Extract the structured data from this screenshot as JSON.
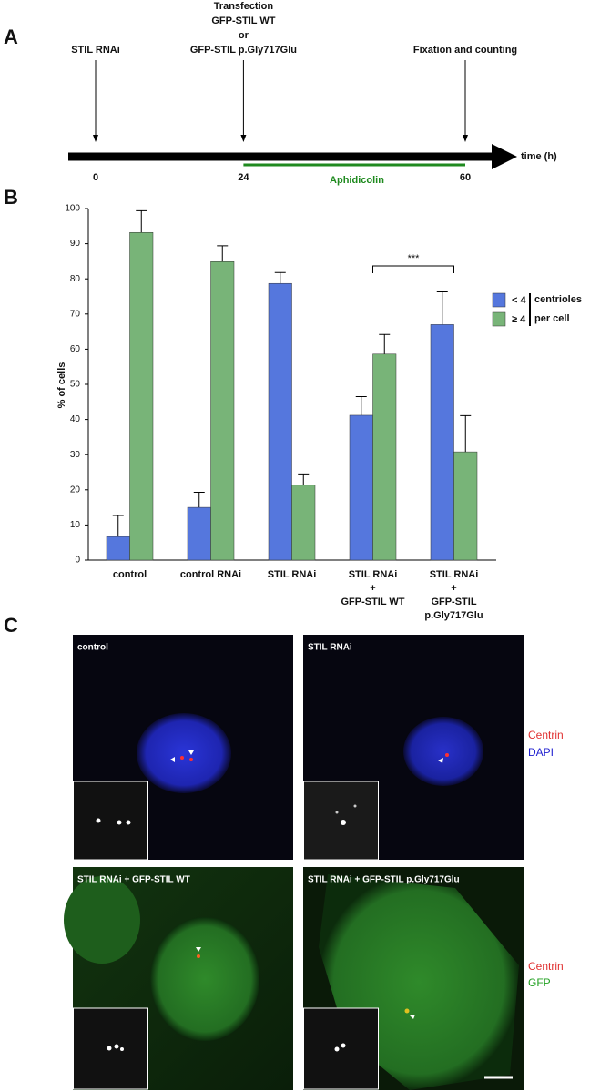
{
  "panel_a": {
    "label": "A",
    "events": [
      {
        "time": 0,
        "lines": [
          "STIL RNAi"
        ]
      },
      {
        "time": 24,
        "lines": [
          "Transfection",
          "GFP-STIL WT",
          "or",
          "GFP-STIL p.Gly717Glu"
        ]
      },
      {
        "time": 60,
        "lines": [
          "Fixation and counting"
        ]
      }
    ],
    "axis_label": "time (h)",
    "treatment": "Aphidicolin"
  },
  "chart_data": {
    "type": "bar",
    "panel_label": "B",
    "y_label": "% of cells",
    "categories": [
      [
        "control"
      ],
      [
        "control RNAi"
      ],
      [
        "STIL RNAi"
      ],
      [
        "STIL RNAi",
        "+",
        "GFP-STIL WT"
      ],
      [
        "STIL RNAi",
        "+",
        "GFP-STIL",
        "p.Gly717Glu"
      ]
    ],
    "series": [
      {
        "name": "< 4",
        "color": "#5577dd",
        "values": [
          6.7,
          15.0,
          78.7,
          41.2,
          67.0
        ],
        "errors": [
          6.0,
          4.3,
          3.1,
          5.3,
          9.3
        ]
      },
      {
        "name": "≥ 4",
        "color": "#78b478",
        "values": [
          93.2,
          84.9,
          21.3,
          58.6,
          30.8
        ],
        "errors": [
          6.2,
          4.5,
          3.2,
          5.6,
          10.3
        ]
      }
    ],
    "legend_title": [
      "centrioles",
      "per cell"
    ],
    "significance": {
      "label": "***",
      "between": [
        3,
        4
      ]
    },
    "ylim": [
      0,
      100
    ],
    "yticks": [
      0,
      10,
      20,
      30,
      40,
      50,
      60,
      70,
      80,
      90,
      100
    ]
  },
  "panel_c": {
    "label": "C",
    "images": [
      {
        "label": "control"
      },
      {
        "label": "STIL RNAi"
      },
      {
        "label": "STIL RNAi + GFP-STIL WT"
      },
      {
        "label": "STIL RNAi + GFP-STIL p.Gly717Glu"
      }
    ],
    "legend_top": [
      "Centrin",
      "DAPI"
    ],
    "legend_bottom": [
      "Centrin",
      "GFP"
    ]
  }
}
